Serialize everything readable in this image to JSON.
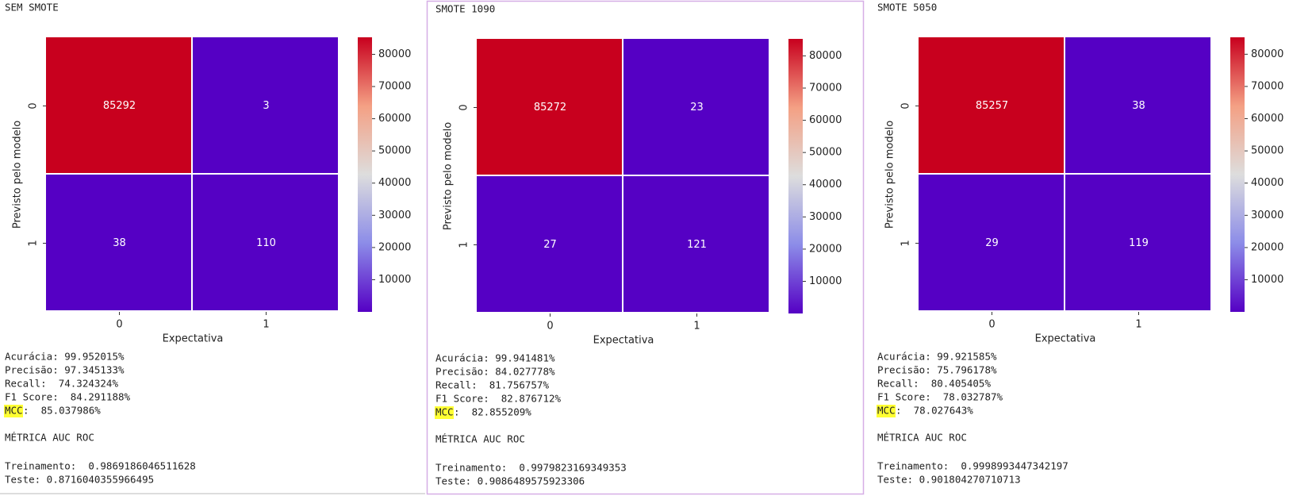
{
  "chart_data": [
    {
      "type": "heatmap",
      "title": "SEM SMOTE",
      "x_label": "Expectativa",
      "y_label": "Previsto pelo modelo",
      "x_categories": [
        "0",
        "1"
      ],
      "y_categories": [
        "0",
        "1"
      ],
      "values": [
        [
          85292,
          3
        ],
        [
          38,
          110
        ]
      ],
      "clim": [
        3,
        85292
      ],
      "colorbar_ticks": [
        10000,
        20000,
        30000,
        40000,
        50000,
        60000,
        70000,
        80000
      ],
      "colormap": [
        "#5500c4",
        "#8c8ce8",
        "#dddddd",
        "#f4a084",
        "#c8001e"
      ]
    },
    {
      "type": "heatmap",
      "title": "SMOTE 1090",
      "x_label": "Expectativa",
      "y_label": "Previsto pelo modelo",
      "x_categories": [
        "0",
        "1"
      ],
      "y_categories": [
        "0",
        "1"
      ],
      "values": [
        [
          85272,
          23
        ],
        [
          27,
          121
        ]
      ],
      "clim": [
        23,
        85272
      ],
      "colorbar_ticks": [
        10000,
        20000,
        30000,
        40000,
        50000,
        60000,
        70000,
        80000
      ],
      "colormap": [
        "#5500c4",
        "#8c8ce8",
        "#dddddd",
        "#f4a084",
        "#c8001e"
      ]
    },
    {
      "type": "heatmap",
      "title": "SMOTE 5050",
      "x_label": "Expectativa",
      "y_label": "Previsto pelo modelo",
      "x_categories": [
        "0",
        "1"
      ],
      "y_categories": [
        "0",
        "1"
      ],
      "values": [
        [
          85257,
          38
        ],
        [
          29,
          119
        ]
      ],
      "clim": [
        29,
        85257
      ],
      "colorbar_ticks": [
        10000,
        20000,
        30000,
        40000,
        50000,
        60000,
        70000,
        80000
      ],
      "colormap": [
        "#5500c4",
        "#8c8ce8",
        "#dddddd",
        "#f4a084",
        "#c8001e"
      ]
    }
  ],
  "panels": [
    {
      "metrics": [
        "Acurácia: 99.952015%",
        "Precisão: 97.345133%",
        "Recall:  74.324324%",
        "F1 Score:  84.291188%"
      ],
      "mcc_label": "MCC",
      "mcc_value": ":  85.037986%",
      "auc_title": "MÉTRICA AUC ROC",
      "train": "Treinamento:  0.9869186046511628",
      "test": "Teste: 0.8716040355966495"
    },
    {
      "metrics": [
        "Acurácia: 99.941481%",
        "Precisão: 84.027778%",
        "Recall:  81.756757%",
        "F1 Score:  82.876712%"
      ],
      "mcc_label": "MCC",
      "mcc_value": ":  82.855209%",
      "auc_title": "MÉTRICA AUC ROC",
      "train": "Treinamento:  0.9979823169349353",
      "test": "Teste: 0.9086489575923306"
    },
    {
      "metrics": [
        "Acurácia: 99.921585%",
        "Precisão: 75.796178%",
        "Recall:  80.405405%",
        "F1 Score:  78.032787%"
      ],
      "mcc_label": "MCC",
      "mcc_value": ":  78.027643%",
      "auc_title": "MÉTRICA AUC ROC",
      "train": "Treinamento:  0.9998993447342197",
      "test": "Teste: 0.901804270710713"
    }
  ]
}
